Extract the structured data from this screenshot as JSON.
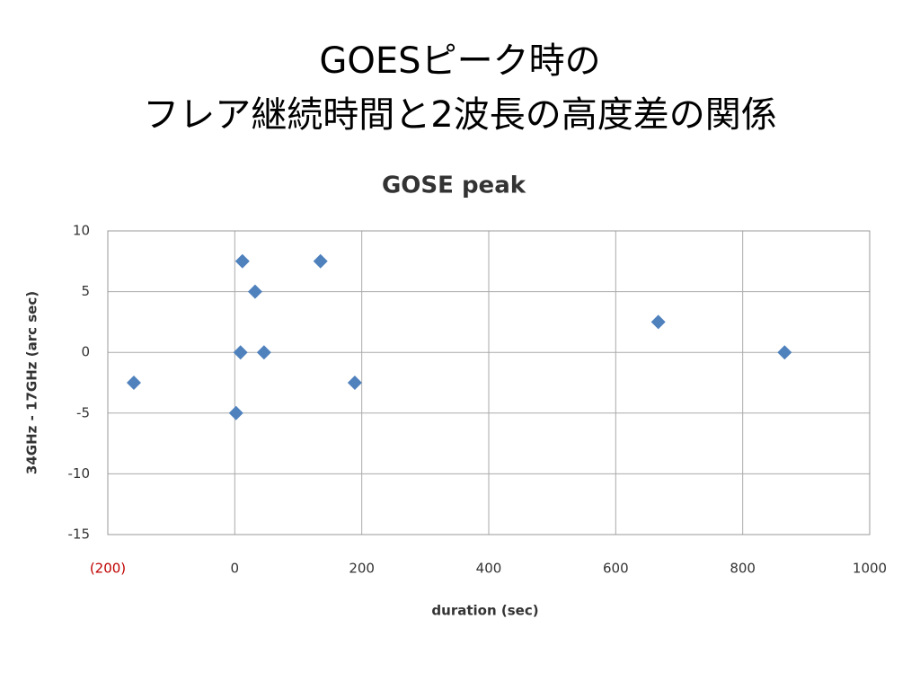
{
  "slide_title": [
    "GOESピーク時の",
    "フレア継続時間と2波長の高度差の関係"
  ],
  "chart_data": {
    "type": "scatter",
    "title": "GOSE peak",
    "x_label": "duration (sec)",
    "y_label": "34GHz - 17GHz (arc sec)",
    "x": [
      -159,
      12,
      135,
      32,
      9,
      46,
      189,
      2,
      667,
      866
    ],
    "values": [
      -2.5,
      7.5,
      7.5,
      5,
      0,
      0,
      -2.5,
      -5,
      2.5,
      0
    ],
    "color": "#4f81bd",
    "xlim": [
      -200,
      1000
    ],
    "xticks": [
      {
        "value": -200,
        "label": "(200)",
        "color": "#c00000"
      },
      0,
      200,
      400,
      600,
      800,
      1000
    ],
    "ylim": [
      -15,
      10
    ],
    "yticks": [
      10,
      5,
      0,
      -5,
      -10,
      -15
    ],
    "grid": true
  }
}
